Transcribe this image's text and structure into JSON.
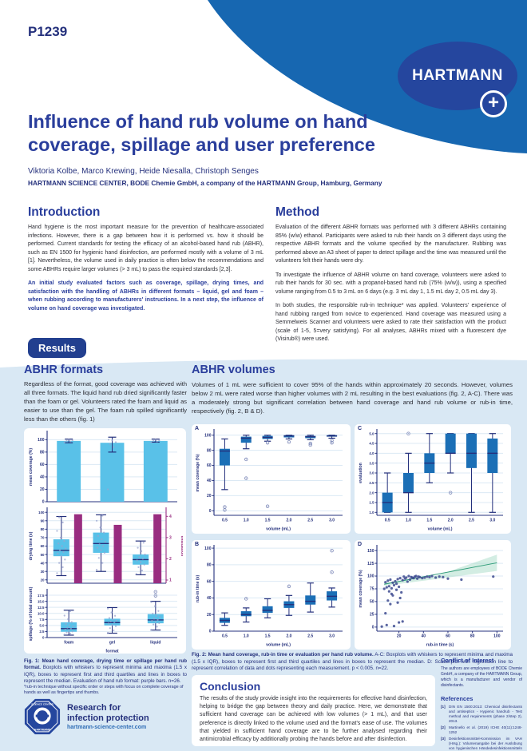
{
  "poster": {
    "code": "P1239",
    "brand": "HARTMANN",
    "plus": "+",
    "title": "Influence of hand rub volume on hand\ncoverage, spillage and user preference",
    "authors": "Viktoria Kolbe, Marco Krewing, Heide Niesalla, Christoph Senges",
    "affiliation": "HARTMANN SCIENCE CENTER, BODE Chemie GmbH, a company of the HARTMANN Group, Hamburg, Germany"
  },
  "sections": {
    "introduction": {
      "heading": "Introduction",
      "p1": "Hand hygiene is the most important measure for the prevention of healthcare-associated infections. However, there is a gap between how it is performed vs. how it should be performed. Current standards for testing the efficacy of an alcohol-based hand rub (ABHR), such as EN 1500 for hygienic hand disinfection, are performed mostly with a volume of 3 mL [1]. Nevertheless, the volume used in daily practice is often below the recommendations and some ABHRs require larger volumes (> 3 mL) to pass the required standards [2,3].",
      "p2": "An initial study evaluated factors such as coverage, spillage, drying times, and satisfaction with the handling of ABHRs in different formats – liquid, gel and foam – when rubbing according to manufacturers' instructions. In a next step, the influence of volume on hand coverage was investigated."
    },
    "method": {
      "heading": "Method",
      "p1": "Evaluation of the different ABHR formats was performed with 3 different ABHRs containing 85% (w/w) ethanol. Participants were asked to rub their hands on 3 different days using the respective ABHR formats and the volume specified by the manufacturer. Rubbing was performed above an A3 sheet of paper to detect spillage and the time was measured until the volunteers felt their hands were dry.",
      "p2": "To investigate the influence of ABHR volume on hand coverage, volunteers were asked to rub their hands for 30 sec. with a propanol-based hand rub (75% (w/w)), using a specified volume ranging from 0.5 to 3 mL on 6 days (e.g. 3 mL day 1, 1.5 mL day 2, 0.5 mL day 3).",
      "p3": "In both studies, the responsible rub-in technique* was applied. Volunteers' experience of hand rubbing ranged from novice to experienced. Hand coverage was measured using a Semmelweis Scanner and volunteers were asked to rate their satisfaction with the product (scale of 1-5, 5=very satisfying). For all analyses, ABHRs mixed with a fluorescent dye (Visirub®) were used."
    },
    "results_badge": "Results",
    "formats": {
      "heading": "ABHR formats",
      "body": "Regardless of the format, good coverage was achieved with all three formats. The liquid hand rub dried significantly faster than the foam or gel. Volunteers rated the foam and liquid as easier to use than the gel. The foam rub spilled significantly less than the others (fig. 1)"
    },
    "volumes": {
      "heading": "ABHR volumes",
      "body": "Volumes of 1 mL were sufficient to cover 95% of the hands within approximately 20 seconds. However, volumes below 2 mL were rated worse than higher volumes with 2 mL resulting in the best evaluations (fig. 2, A-C). There was a moderately strong but significant correlation between hand coverage and hand rub volume or rub-in time, respectively (fig. 2, B & D)."
    },
    "fig1_caption": {
      "bold": "Fig. 1: Mean hand coverage, drying time or spillage per hand rub format.",
      "rest": " Boxplots with whiskers to represent minima and maxima (1.5 x IQR), boxes to represent first and third quartiles and lines in boxes to represent the median. Evaluation of hand rub format: purple bars. n=26."
    },
    "fig2_caption": {
      "bold": "Fig. 2: Mean hand coverage, rub-in time or evaluation per hand rub volume.",
      "rest": " A-C: Boxplots with whiskers to represent minima and maxima (1.5 x IQR), boxes to represent first and third quartiles and lines in boxes to represent the median. D: Scatterplot with regression line to represent correlation of data and dots representing each measurement. p < 0.005. n=22."
    },
    "conclusion": {
      "heading": "Conclusion",
      "body": "The results of the study provide insight into the requirements for effective hand disinfection, helping to bridge the gap between theory and daily practice. Here, we demonstrate that sufficient hand coverage can be achieved with low volumes (> 1 mL), and that user preference is directly linked to the volume used and the format's ease of use. The volumes that yielded in sufficient hand coverage are to be further analysed regarding their antimicrobial efficacy by additionally probing the hands before and after disinfection."
    },
    "footnote": "*rub-in technique without specific order or steps with focus on complete coverage of hands as well as fingertips and thumbs.",
    "conflict": {
      "heading": "Conflict of Interest",
      "body": "The authors are employees of BODE Chemie GmbH, a company of the HARTMANN Group, which is a manufacturer and vendor of disinfectants."
    },
    "references": {
      "heading": "References",
      "items": [
        {
          "n": "[1]",
          "t": "DIN EN 1500:2013: Chemical disinfectants and antiseptics - Hygienic handrub - Test method and requirements (phase 2/step 2), 2013."
        },
        {
          "n": "[2]",
          "t": "Martinello et al. (2019) ICHE 40(11):1248-1252"
        },
        {
          "n": "[3]",
          "t": "Desinfektionsmittel-Kommission im VAH (Hrsg.): Volumenangabe bei der Auslobung von hygienischen Händedesinfektionsmitteln 11/2021."
        }
      ]
    }
  },
  "footer_logo": {
    "line1": "Research for",
    "line2": "infection protection",
    "url": "hartmann-science-center.com",
    "badge_top": "SCIENCE CENTER",
    "badge_bottom": "HARTMANN"
  },
  "palette": {
    "brand_blue": "#1767b1",
    "oval_blue": "#25469e",
    "navy": "#24307c",
    "heading_blue": "#2a3e9c",
    "light_bg": "#d9e8f4",
    "sky": "#59c1e8",
    "blue": "#1b6fb6",
    "purple": "#992d80",
    "grid": "#dce9f4",
    "outlier": "#7c88b8",
    "jitter": "#9aa4cf",
    "dot": "#3d4a8f",
    "green": "#2e9c78",
    "band": "#a8dcc8"
  },
  "chart_data": [
    {
      "id": "fig1-coverage",
      "type": "bar",
      "fill_key": "sky",
      "ylabel": "mean coverage (%)",
      "ylim": [
        0,
        112
      ],
      "yticks": [
        0,
        20,
        40,
        60,
        80,
        100
      ],
      "categories": [
        "foam",
        "gel",
        "liquid"
      ],
      "xticklabels": false,
      "values": [
        98,
        95,
        98
      ],
      "errors": [
        [
          95,
          101
        ],
        [
          80,
          104
        ],
        [
          96,
          101
        ]
      ],
      "jitter": [
        [
          96,
          97,
          98,
          99,
          100
        ],
        [
          20,
          88,
          93,
          96,
          99,
          100
        ],
        [
          96,
          97,
          98,
          99,
          100
        ]
      ]
    },
    {
      "id": "fig1-drying",
      "type": "box",
      "fill_key": "sky",
      "ylabel": "drying time (s)",
      "ylim": [
        16,
        104
      ],
      "yticks": [
        20,
        30,
        40,
        50,
        60,
        70,
        80,
        90,
        100
      ],
      "ts": 4.4,
      "categories": [
        "foam",
        "gel",
        "liquid"
      ],
      "xticklabels": false,
      "boxes": [
        {
          "lo": 25,
          "q1": 48,
          "med": 55,
          "q3": 68,
          "hi": 95
        },
        {
          "lo": 30,
          "q1": 52,
          "med": 63,
          "q3": 76,
          "hi": 97
        },
        {
          "lo": 26,
          "q1": 38,
          "med": 44,
          "q3": 50,
          "hi": 66
        }
      ],
      "jitter": [
        [
          28,
          35,
          40,
          44,
          48,
          51,
          53,
          55,
          57,
          60,
          63,
          66,
          70,
          78,
          88,
          94
        ],
        [
          32,
          40,
          46,
          52,
          55,
          58,
          60,
          62,
          65,
          68,
          72,
          76,
          82,
          90,
          96
        ],
        [
          27,
          31,
          35,
          38,
          41,
          43,
          45,
          47,
          50,
          54,
          58,
          64
        ]
      ],
      "right_axis": {
        "label": "evaluation",
        "lim": [
          0.85,
          4.35
        ],
        "ticks": [
          1,
          2,
          3,
          4
        ],
        "values": [
          4.1,
          3.6,
          4.1
        ]
      }
    },
    {
      "id": "fig1-spillage",
      "type": "box",
      "fill_key": "sky",
      "ylabel": "spillage (% of total amount)",
      "xlabel": "format",
      "ylim": [
        0,
        19.5
      ],
      "yticks": [
        0,
        2.5,
        5,
        7.5,
        10,
        12.5,
        15,
        17.5
      ],
      "ytick_labels": [
        "0",
        "2.5",
        "5.0",
        "7.5",
        "10.0",
        "12.5",
        "15.0",
        "17.5"
      ],
      "ts": 4.4,
      "categories": [
        "foam",
        "gel",
        "liquid"
      ],
      "boxes": [
        {
          "lo": 1.0,
          "q1": 2.4,
          "med": 3.7,
          "q3": 6.3,
          "hi": 11.3
        },
        {
          "lo": 1.8,
          "q1": 5.0,
          "med": 6.2,
          "q3": 7.8,
          "hi": 12.4
        },
        {
          "lo": 3.1,
          "q1": 5.9,
          "med": 7.3,
          "q3": 9.7,
          "hi": 15.0,
          "out": [
            17.3,
            18.9
          ]
        }
      ],
      "jitter": [
        [
          1.3,
          1.7,
          2.1,
          2.5,
          2.9,
          3.3,
          3.7,
          4.1,
          4.6,
          5.1,
          5.7,
          6.4,
          7.6,
          9.1,
          10.9
        ],
        [
          2,
          3,
          3.9,
          4.7,
          5.3,
          5.8,
          6.2,
          6.6,
          7,
          7.5,
          8.1,
          9,
          10.4,
          12
        ],
        [
          3.2,
          4.5,
          5.4,
          6,
          6.5,
          6.9,
          7.3,
          7.8,
          8.4,
          9,
          9.9,
          11,
          13,
          14.7
        ]
      ]
    },
    {
      "id": "fig2-a",
      "letter": "A",
      "type": "box",
      "ylabel": "mean coverage (%)",
      "xlabel": "volume (mL)",
      "ylim": [
        -6,
        106
      ],
      "yticks": [
        0,
        20,
        40,
        60,
        80,
        100
      ],
      "categories": [
        "0.5",
        "1.0",
        "1.5",
        "2.0",
        "2.5",
        "3.0"
      ],
      "boxes": [
        {
          "lo": 28,
          "q1": 60,
          "med": 79,
          "q3": 82,
          "hi": 95,
          "out": [
            5,
            1
          ]
        },
        {
          "lo": 82,
          "q1": 90,
          "med": 96,
          "q3": 98,
          "hi": 100,
          "out": [
            68,
            43
          ]
        },
        {
          "lo": 92,
          "q1": 95,
          "med": 97,
          "q3": 99,
          "hi": 100,
          "out": [
            90,
            6
          ]
        },
        {
          "lo": 95,
          "q1": 97,
          "med": 99,
          "q3": 100,
          "hi": 100,
          "out": [
            91
          ]
        },
        {
          "lo": 94,
          "q1": 96,
          "med": 98,
          "q3": 99,
          "hi": 100,
          "out": [
            89,
            87
          ]
        },
        {
          "lo": 96,
          "q1": 98,
          "med": 99,
          "q3": 100,
          "hi": 100,
          "out": [
            93,
            90
          ]
        }
      ]
    },
    {
      "id": "fig2-b",
      "letter": "B",
      "type": "box",
      "ylabel": "rub-in time (s)",
      "xlabel": "volume (mL)",
      "ylim": [
        0,
        102
      ],
      "yticks": [
        0,
        20,
        40,
        60,
        80,
        100
      ],
      "categories": [
        "0.5",
        "1.0",
        "1.5",
        "2.0",
        "2.5",
        "3.0"
      ],
      "boxes": [
        {
          "lo": 7,
          "q1": 10,
          "med": 13,
          "q3": 16,
          "hi": 22
        },
        {
          "lo": 11,
          "q1": 18,
          "med": 20,
          "q3": 24,
          "hi": 28,
          "out": [
            39
          ]
        },
        {
          "lo": 16,
          "q1": 22,
          "med": 25,
          "q3": 30,
          "hi": 39
        },
        {
          "lo": 19,
          "q1": 28,
          "med": 32,
          "q3": 36,
          "hi": 43,
          "out": [
            54
          ]
        },
        {
          "lo": 23,
          "q1": 32,
          "med": 36,
          "q3": 43,
          "hi": 58
        },
        {
          "lo": 29,
          "q1": 37,
          "med": 42,
          "q3": 48,
          "hi": 52,
          "out": [
            71,
            97
          ]
        }
      ]
    },
    {
      "id": "fig2-c",
      "letter": "C",
      "type": "box",
      "ylabel": "evaluation",
      "xlabel": "volume (mL)",
      "ylim": [
        0.85,
        5.15
      ],
      "yticks": [
        1,
        1.5,
        2,
        2.5,
        3,
        3.5,
        4,
        4.5,
        5
      ],
      "ytick_labels": [
        "1.0",
        "1.5",
        "2.0",
        "2.5",
        "3.0",
        "3.5",
        "4.0",
        "4.5",
        "5.0"
      ],
      "ts": 4.4,
      "categories": [
        "0.5",
        "1.0",
        "1.5",
        "2.0",
        "2.5",
        "3.0"
      ],
      "boxes": [
        {
          "lo": 1,
          "q1": 1,
          "med": 1.5,
          "q3": 2,
          "hi": 3
        },
        {
          "lo": 1,
          "q1": 2,
          "med": 2,
          "q3": 3,
          "hi": 4,
          "out": [
            5
          ]
        },
        {
          "lo": 2.5,
          "q1": 3,
          "med": 3.5,
          "q3": 4,
          "hi": 5
        },
        {
          "lo": 3,
          "q1": 4,
          "med": 4,
          "q3": 5,
          "hi": 5,
          "out": [
            2
          ]
        },
        {
          "lo": 1,
          "q1": 3.25,
          "med": 4,
          "q3": 5,
          "hi": 5
        },
        {
          "lo": 1,
          "q1": 3,
          "med": 4,
          "q3": 4.75,
          "hi": 5
        }
      ]
    },
    {
      "id": "fig2-d",
      "letter": "D",
      "type": "scatter",
      "ylabel": "mean coverage (%)",
      "xlabel": "rub-in time (s)",
      "ylim": [
        -8,
        158
      ],
      "yticks": [
        0,
        25,
        50,
        75,
        100,
        125,
        150
      ],
      "xlim": [
        2,
        105
      ],
      "xticks": [
        20,
        40,
        60,
        80,
        100
      ],
      "points": [
        [
          6,
          1
        ],
        [
          10,
          4
        ],
        [
          16,
          2
        ],
        [
          20,
          9
        ],
        [
          23,
          11
        ],
        [
          9,
          27
        ],
        [
          13,
          45
        ],
        [
          19,
          48
        ],
        [
          11,
          52
        ],
        [
          15,
          62
        ],
        [
          21,
          57
        ],
        [
          8,
          75
        ],
        [
          10,
          78
        ],
        [
          12,
          80
        ],
        [
          14,
          76
        ],
        [
          16,
          82
        ],
        [
          18,
          85
        ],
        [
          20,
          79
        ],
        [
          22,
          68
        ],
        [
          9,
          88
        ],
        [
          11,
          91
        ],
        [
          13,
          93
        ],
        [
          15,
          87
        ],
        [
          17,
          90
        ],
        [
          19,
          94
        ],
        [
          21,
          96
        ],
        [
          23,
          92
        ],
        [
          25,
          95
        ],
        [
          27,
          89
        ],
        [
          29,
          93
        ],
        [
          31,
          97
        ],
        [
          33,
          99
        ],
        [
          35,
          95
        ],
        [
          37,
          98
        ],
        [
          39,
          96
        ],
        [
          24,
          99
        ],
        [
          26,
          97
        ],
        [
          28,
          100
        ],
        [
          30,
          98
        ],
        [
          32,
          96
        ],
        [
          34,
          100
        ],
        [
          36,
          99
        ],
        [
          41,
          97
        ],
        [
          43,
          99
        ],
        [
          45,
          98
        ],
        [
          47,
          100
        ],
        [
          50,
          97
        ],
        [
          53,
          99
        ],
        [
          56,
          98
        ],
        [
          60,
          95
        ],
        [
          71,
          93
        ],
        [
          97,
          99
        ],
        [
          12,
          70
        ],
        [
          14,
          65
        ],
        [
          18,
          73
        ]
      ],
      "regression": {
        "x1": 8,
        "y1": 84,
        "x2": 100,
        "y2": 126
      },
      "band": [
        [
          8,
          81
        ],
        [
          50,
          94
        ],
        [
          100,
          110
        ],
        [
          100,
          142
        ],
        [
          50,
          100
        ],
        [
          8,
          87
        ]
      ]
    }
  ]
}
